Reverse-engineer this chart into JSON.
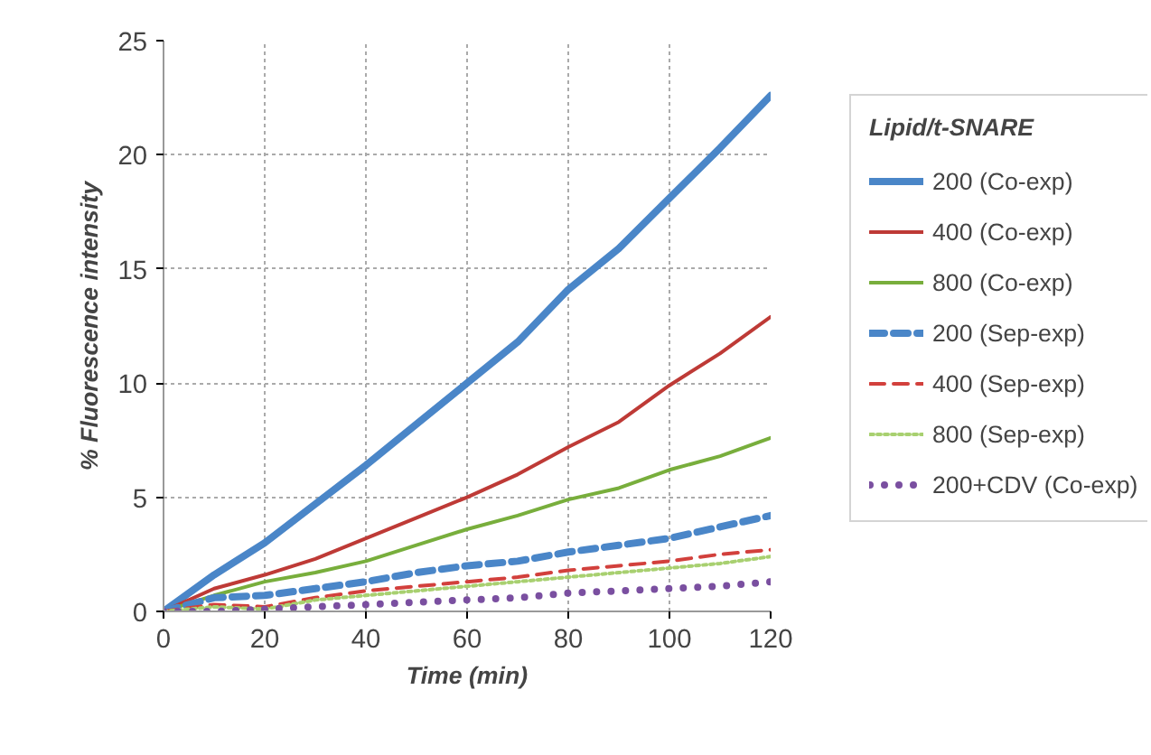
{
  "chart_data": {
    "type": "line",
    "xlabel": "Time (min)",
    "ylabel": "% Fluorescence intensity",
    "legend_title": "Lipid/t-SNARE",
    "legend": "right",
    "grid": true,
    "x": [
      0,
      10,
      20,
      30,
      40,
      50,
      60,
      70,
      80,
      90,
      100,
      110,
      120
    ],
    "xlim": [
      0,
      120
    ],
    "xticks": [
      0,
      20,
      40,
      60,
      80,
      100,
      120
    ],
    "ylim": [
      0,
      25
    ],
    "yticks": [
      0,
      5,
      10,
      15,
      20,
      25
    ],
    "series": [
      {
        "name": "200 (Co-exp)",
        "color": "#4a86c8",
        "line_style": "solid",
        "values": [
          0,
          1.6,
          3.0,
          4.7,
          6.4,
          8.2,
          10.0,
          11.8,
          14.1,
          15.9,
          18.1,
          20.3,
          22.6
        ]
      },
      {
        "name": "400 (Co-exp)",
        "color": "#be3a36",
        "line_style": "solid",
        "values": [
          0,
          1.0,
          1.6,
          2.3,
          3.2,
          4.1,
          5.0,
          6.0,
          7.2,
          8.3,
          9.9,
          11.3,
          12.9
        ]
      },
      {
        "name": "800 (Co-exp)",
        "color": "#78ae3c",
        "line_style": "solid",
        "values": [
          0,
          0.7,
          1.3,
          1.7,
          2.2,
          2.9,
          3.6,
          4.2,
          4.9,
          5.4,
          6.2,
          6.8,
          7.6
        ]
      },
      {
        "name": "200 (Sep-exp)",
        "color": "#4a86c8",
        "line_style": "dashed",
        "values": [
          0,
          0.6,
          0.7,
          1.0,
          1.3,
          1.7,
          2.0,
          2.2,
          2.6,
          2.9,
          3.2,
          3.7,
          4.2
        ]
      },
      {
        "name": "400 (Sep-exp)",
        "color": "#d2403c",
        "line_style": "dashed",
        "values": [
          0,
          0.3,
          0.2,
          0.6,
          0.9,
          1.1,
          1.3,
          1.5,
          1.8,
          2.0,
          2.2,
          2.5,
          2.7
        ]
      },
      {
        "name": "800 (Sep-exp)",
        "color": "#a8d070",
        "line_style": "dotted",
        "values": [
          0,
          0.2,
          0.1,
          0.5,
          0.7,
          0.9,
          1.1,
          1.3,
          1.5,
          1.7,
          1.9,
          2.1,
          2.4
        ]
      },
      {
        "name": "200+CDV (Co-exp)",
        "color": "#7a4fa0",
        "line_style": "dotted",
        "values": [
          0,
          0,
          0.1,
          0.2,
          0.3,
          0.4,
          0.5,
          0.6,
          0.8,
          0.9,
          1.0,
          1.1,
          1.3
        ]
      }
    ]
  }
}
